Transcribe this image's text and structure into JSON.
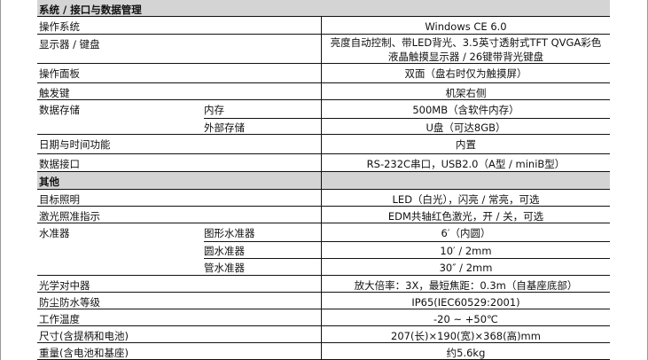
{
  "sections": [
    {
      "title": "系统 / 接口与数据管理",
      "rows": [
        {
          "label": "操作系统",
          "value": "Windows CE 6.0"
        },
        {
          "label": "显示器 / 键盘",
          "value": "亮度自动控制、带LED背光、3.5英寸透射式TFT QVGA彩色液晶触摸显示器 / 26键带背光键盘"
        },
        {
          "label": "操作面板",
          "value": "双面（盘右时仅为触摸屏）"
        },
        {
          "label": "触发键",
          "value": "机架右侧"
        },
        {
          "label": "数据存储",
          "subs": [
            {
              "label": "内存",
              "value": "500MB（含软件内存）"
            },
            {
              "label": "外部存储",
              "value": "U盘（可达8GB）"
            }
          ]
        },
        {
          "label": "日期与时间功能",
          "value": "内置"
        },
        {
          "label": "数据接口",
          "value": "RS-232C串口，USB2.0（A型 / miniB型）"
        }
      ]
    },
    {
      "title": "其他",
      "rows": [
        {
          "label": "目标照明",
          "value": "LED（白光），闪亮 / 常亮，可选"
        },
        {
          "label": "激光照准指示",
          "value": "EDM共轴红色激光，开 / 关，可选"
        },
        {
          "label": "水准器",
          "subs": [
            {
              "label": "图形水准器",
              "value": "6′（内圆）"
            },
            {
              "label": "圆水准器",
              "value": "10′ / 2mm"
            },
            {
              "label": "管水准器",
              "value": "30″ / 2mm"
            }
          ]
        },
        {
          "label": "光学对中器",
          "value": "放大倍率：3X，最短焦距：0.3m（自基座底部）"
        },
        {
          "label": "防尘防水等级",
          "value": "IP65(IEC60529:2001)"
        },
        {
          "label": "工作温度",
          "value": "-20 ~ +50℃"
        },
        {
          "label": "尺寸(含提柄和电池)",
          "value": "207(长)×190(宽)×368(高)mm"
        },
        {
          "label": "重量(含电池和基座)",
          "value": "约5.6kg"
        }
      ]
    }
  ]
}
